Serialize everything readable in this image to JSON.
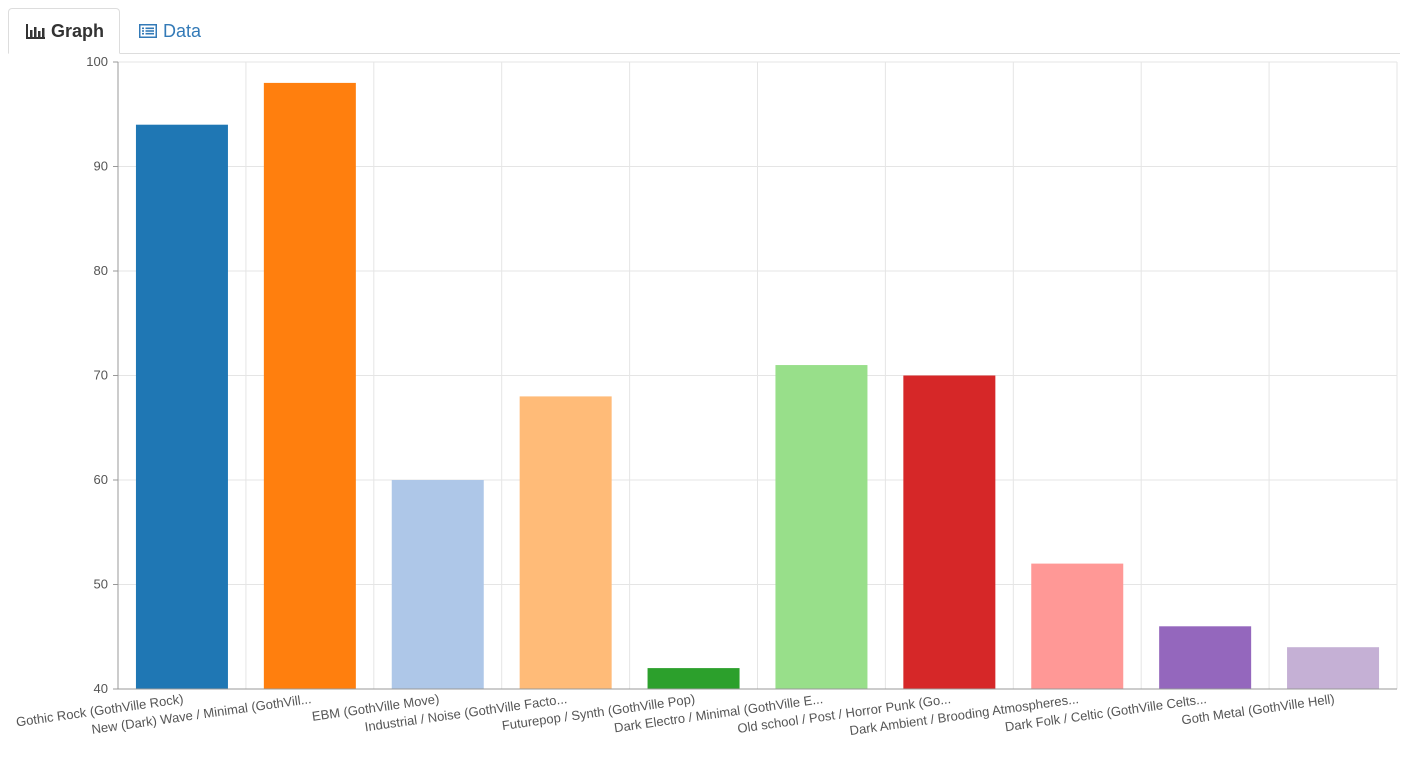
{
  "tabs": [
    {
      "label": "Graph",
      "icon": "bar-chart-icon",
      "active": true
    },
    {
      "label": "Data",
      "icon": "table-list-icon",
      "active": false
    }
  ],
  "chart_data": {
    "type": "bar",
    "categories": [
      "Gothic Rock (GothVille Rock)",
      "New (Dark) Wave / Minimal (GothVill...",
      "EBM (GothVille Move)",
      "Industrial / Noise (GothVille Facto...",
      "Futurepop / Synth (GothVille Pop)",
      "Dark Electro / Minimal (GothVille E...",
      "Old school / Post / Horror Punk (Go...",
      "Dark Ambient / Brooding Atmospheres...",
      "Dark Folk / Celtic (GothVille Celts...",
      "Goth Metal (GothVille Hell)"
    ],
    "values": [
      94,
      98,
      60,
      68,
      42,
      71,
      70,
      52,
      46,
      44
    ],
    "colors": [
      "#1f77b4",
      "#ff7f0e",
      "#aec7e8",
      "#ffbb78",
      "#2ca02c",
      "#98df8a",
      "#d62728",
      "#ff9896",
      "#9467bd",
      "#c5b0d5"
    ],
    "ylim": [
      40,
      100
    ],
    "yticks": [
      "40",
      "50",
      "60",
      "70",
      "80",
      "90",
      "100"
    ],
    "grid": true,
    "title": "",
    "xlabel": "",
    "ylabel": ""
  }
}
